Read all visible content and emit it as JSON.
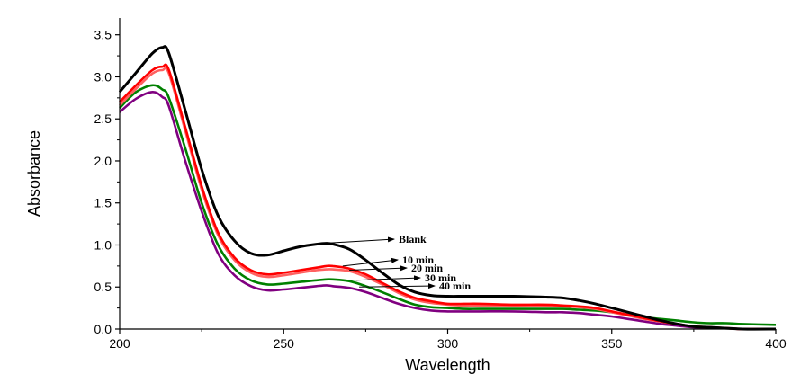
{
  "chart_data": {
    "type": "line",
    "xlabel": "Wavelength",
    "ylabel": "Absorbance",
    "xlim": [
      200,
      400
    ],
    "ylim": [
      0.0,
      3.7
    ],
    "x_ticks": [
      "200",
      "250",
      "300",
      "350",
      "400"
    ],
    "y_ticks": [
      "0.0",
      "0.5",
      "1.0",
      "1.5",
      "2.0",
      "2.5",
      "3.0",
      "3.5"
    ],
    "grid": false,
    "x": [
      200,
      205,
      210,
      213,
      215,
      220,
      225,
      230,
      235,
      240,
      245,
      250,
      255,
      260,
      263,
      265,
      270,
      275,
      280,
      285,
      290,
      295,
      300,
      305,
      310,
      320,
      330,
      335,
      340,
      345,
      350,
      355,
      360,
      365,
      370,
      375,
      380,
      385,
      390,
      400
    ],
    "series": [
      {
        "color": "#000000",
        "label": "Blank",
        "values": [
          2.82,
          3.05,
          3.28,
          3.35,
          3.28,
          2.6,
          1.9,
          1.35,
          1.05,
          0.9,
          0.88,
          0.93,
          0.98,
          1.01,
          1.02,
          1.01,
          0.95,
          0.82,
          0.67,
          0.53,
          0.44,
          0.4,
          0.39,
          0.39,
          0.39,
          0.39,
          0.38,
          0.37,
          0.34,
          0.3,
          0.25,
          0.2,
          0.15,
          0.1,
          0.06,
          0.03,
          0.02,
          0.01,
          0.0,
          0.0
        ]
      },
      {
        "color": "#ff0000",
        "label": "10 min",
        "values": [
          2.7,
          2.9,
          3.08,
          3.12,
          3.08,
          2.4,
          1.7,
          1.15,
          0.85,
          0.7,
          0.65,
          0.67,
          0.7,
          0.73,
          0.75,
          0.75,
          0.72,
          0.65,
          0.55,
          0.45,
          0.37,
          0.33,
          0.3,
          0.3,
          0.3,
          0.29,
          0.29,
          0.28,
          0.27,
          0.25,
          0.21,
          0.17,
          0.13,
          0.09,
          0.06,
          0.03,
          0.02,
          0.01,
          0.0,
          0.0
        ]
      },
      {
        "color": "#ff6060",
        "label": "20 min",
        "values": [
          2.66,
          2.86,
          3.04,
          3.08,
          3.04,
          2.36,
          1.66,
          1.12,
          0.82,
          0.67,
          0.62,
          0.64,
          0.67,
          0.7,
          0.71,
          0.71,
          0.69,
          0.62,
          0.53,
          0.43,
          0.35,
          0.31,
          0.29,
          0.28,
          0.28,
          0.28,
          0.28,
          0.27,
          0.26,
          0.24,
          0.2,
          0.16,
          0.12,
          0.09,
          0.06,
          0.03,
          0.02,
          0.01,
          0.0,
          0.0
        ]
      },
      {
        "color": "#008000",
        "label": "30 min",
        "values": [
          2.63,
          2.82,
          2.9,
          2.85,
          2.75,
          2.15,
          1.5,
          1.0,
          0.72,
          0.58,
          0.53,
          0.54,
          0.56,
          0.58,
          0.59,
          0.59,
          0.57,
          0.51,
          0.44,
          0.36,
          0.29,
          0.26,
          0.25,
          0.24,
          0.24,
          0.24,
          0.24,
          0.24,
          0.23,
          0.22,
          0.2,
          0.17,
          0.14,
          0.12,
          0.1,
          0.08,
          0.07,
          0.07,
          0.06,
          0.05
        ]
      },
      {
        "color": "#800080",
        "label": "40 min",
        "values": [
          2.58,
          2.74,
          2.82,
          2.76,
          2.65,
          2.0,
          1.4,
          0.9,
          0.64,
          0.51,
          0.46,
          0.47,
          0.49,
          0.51,
          0.52,
          0.51,
          0.49,
          0.44,
          0.37,
          0.3,
          0.25,
          0.22,
          0.21,
          0.21,
          0.21,
          0.21,
          0.2,
          0.2,
          0.19,
          0.17,
          0.15,
          0.12,
          0.09,
          0.06,
          0.04,
          0.02,
          0.01,
          0.01,
          0.0,
          0.0
        ]
      }
    ],
    "annotations": [
      {
        "text": "Blank",
        "x": 262,
        "y": 1.02
      },
      {
        "text": "10 min",
        "x": 268,
        "y": 0.75
      },
      {
        "text": "20 min",
        "x": 270,
        "y": 0.7
      },
      {
        "text": "30 min",
        "x": 272,
        "y": 0.58
      },
      {
        "text": "40 min",
        "x": 273,
        "y": 0.5
      }
    ]
  }
}
